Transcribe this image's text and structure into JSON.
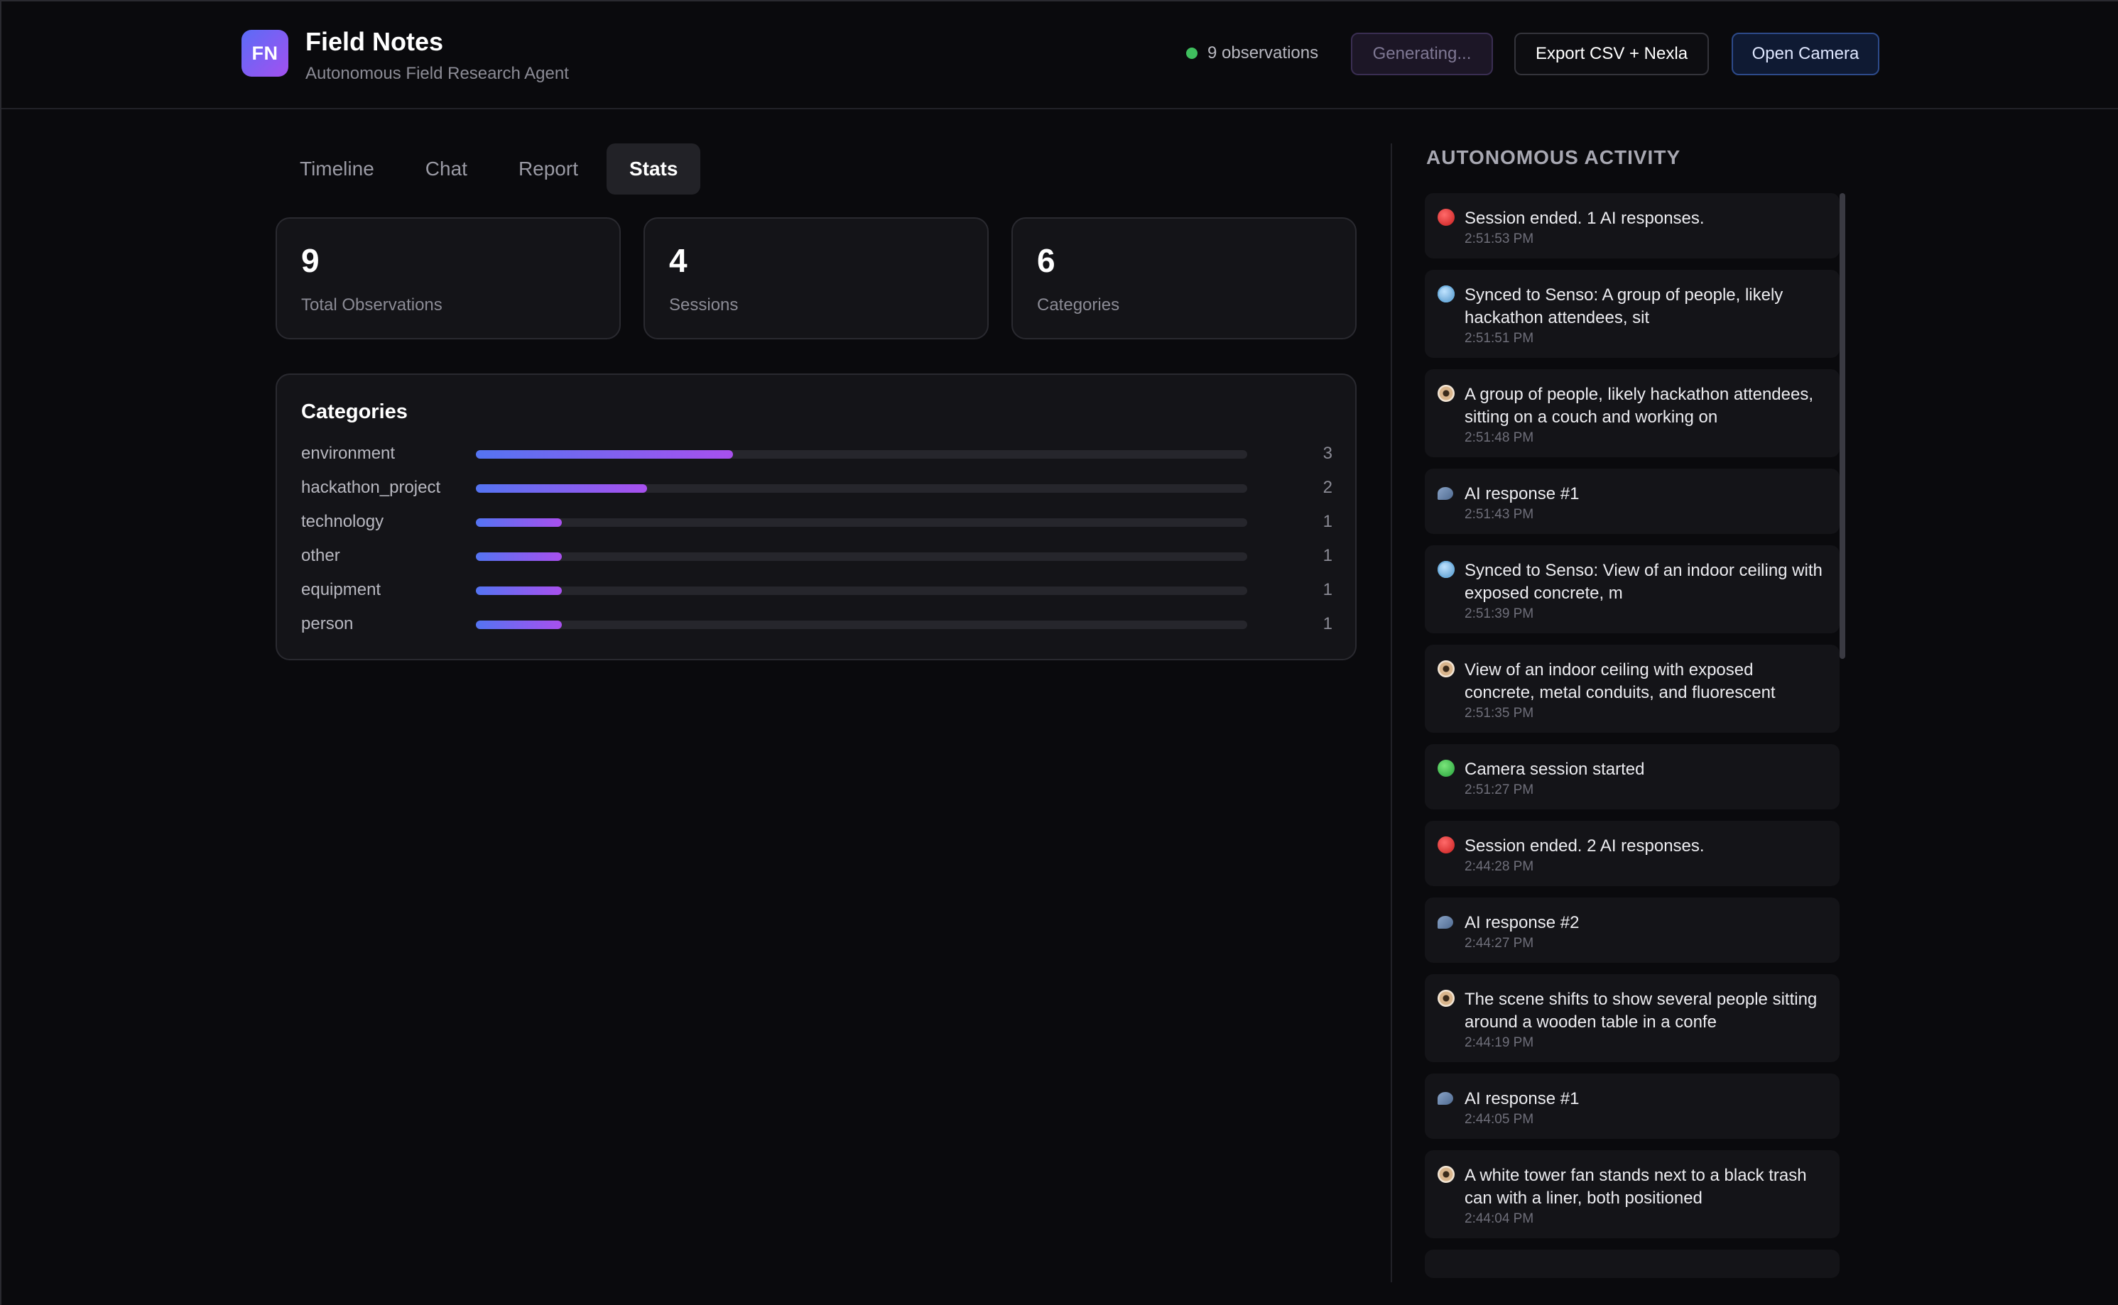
{
  "header": {
    "logo_text": "FN",
    "title": "Field Notes",
    "subtitle": "Autonomous Field Research Agent",
    "observations_status": "9 observations",
    "generating_label": "Generating...",
    "export_label": "Export CSV + Nexla",
    "camera_label": "Open Camera",
    "status_color": "#3fbf5e"
  },
  "tabs": [
    {
      "label": "Timeline"
    },
    {
      "label": "Chat"
    },
    {
      "label": "Report"
    },
    {
      "label": "Stats"
    }
  ],
  "active_tab": "Stats",
  "stats": [
    {
      "value": "9",
      "label": "Total Observations"
    },
    {
      "value": "4",
      "label": "Sessions"
    },
    {
      "value": "6",
      "label": "Categories"
    }
  ],
  "categories": {
    "title": "Categories",
    "max": 9,
    "items": [
      {
        "name": "environment",
        "count": "3",
        "value": 3
      },
      {
        "name": "hackathon_project",
        "count": "2",
        "value": 2
      },
      {
        "name": "technology",
        "count": "1",
        "value": 1
      },
      {
        "name": "other",
        "count": "1",
        "value": 1
      },
      {
        "name": "equipment",
        "count": "1",
        "value": 1
      },
      {
        "name": "person",
        "count": "1",
        "value": 1
      }
    ]
  },
  "activity": {
    "title": "AUTONOMOUS ACTIVITY",
    "items": [
      {
        "icon": "red-circle-icon",
        "text": "Session ended. 1 AI responses.",
        "time": "2:51:53 PM"
      },
      {
        "icon": "globe-icon",
        "text": "Synced to Senso: A group of people, likely hackathon attendees, sit",
        "time": "2:51:51 PM"
      },
      {
        "icon": "eye-icon",
        "text": "A group of people, likely hackathon attendees, sitting on a couch and working on",
        "time": "2:51:48 PM"
      },
      {
        "icon": "speech-icon",
        "text": "AI response #1",
        "time": "2:51:43 PM"
      },
      {
        "icon": "globe-icon",
        "text": "Synced to Senso: View of an indoor ceiling with exposed concrete, m",
        "time": "2:51:39 PM"
      },
      {
        "icon": "eye-icon",
        "text": "View of an indoor ceiling with exposed concrete, metal conduits, and fluorescent",
        "time": "2:51:35 PM"
      },
      {
        "icon": "green-circle-icon",
        "text": "Camera session started",
        "time": "2:51:27 PM"
      },
      {
        "icon": "red-circle-icon",
        "text": "Session ended. 2 AI responses.",
        "time": "2:44:28 PM"
      },
      {
        "icon": "speech-icon",
        "text": "AI response #2",
        "time": "2:44:27 PM"
      },
      {
        "icon": "eye-icon",
        "text": "The scene shifts to show several people sitting around a wooden table in a confe",
        "time": "2:44:19 PM"
      },
      {
        "icon": "speech-icon",
        "text": "AI response #1",
        "time": "2:44:05 PM"
      },
      {
        "icon": "eye-icon",
        "text": "A white tower fan stands next to a black trash can with a liner, both positioned",
        "time": "2:44:04 PM"
      }
    ]
  }
}
